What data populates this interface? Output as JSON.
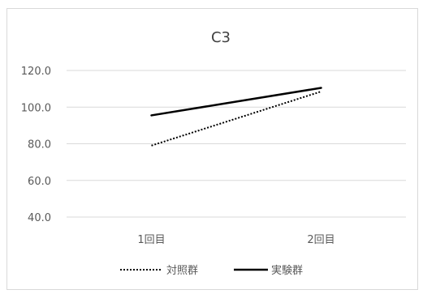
{
  "chart_data": {
    "type": "line",
    "title": "C3",
    "categories": [
      "1回目",
      "2回目"
    ],
    "ylim": [
      40,
      120
    ],
    "yticks": [
      "120.0",
      "100.0",
      "80.0",
      "60.0",
      "40.0"
    ],
    "ytick_values": [
      120,
      100,
      80,
      60,
      40
    ],
    "grid": true,
    "legend_position": "bottom",
    "series": [
      {
        "name": "対照群",
        "values": [
          79,
          108.5
        ],
        "style": "dotted",
        "color": "#000000"
      },
      {
        "name": "実験群",
        "values": [
          95.5,
          110.5
        ],
        "style": "solid",
        "color": "#000000"
      }
    ]
  },
  "colors": {
    "grid": "#d9d9d9",
    "text": "#595959",
    "border": "#d9d9d9"
  }
}
